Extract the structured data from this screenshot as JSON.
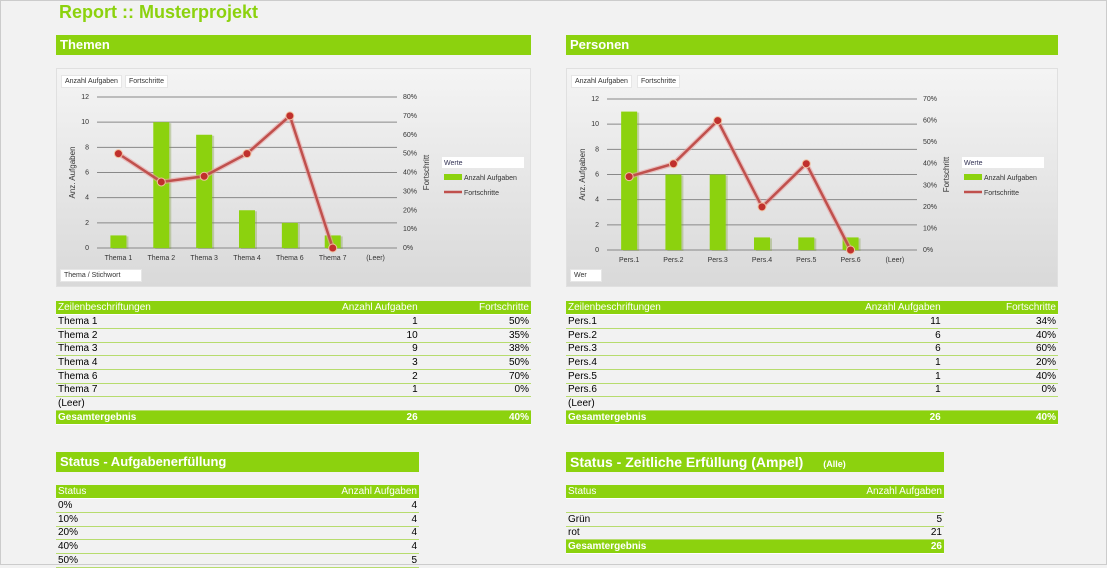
{
  "title": "Report :: Musterprojekt",
  "colors": {
    "accent": "#8cd20e",
    "bar": "#8cd20e",
    "line": "#c0504d"
  },
  "themen": {
    "heading": "Themen",
    "tag_fields": "Anzahl Aufgaben",
    "tag_fields2": "Fortschritte",
    "axis_field": "Thema / Stichwort",
    "table": {
      "headers": [
        "Zeilenbeschriftungen",
        "Anzahl Aufgaben",
        "Fortschritte"
      ],
      "rows": [
        [
          "Thema 1",
          "1",
          "50%"
        ],
        [
          "Thema 2",
          "10",
          "35%"
        ],
        [
          "Thema 3",
          "9",
          "38%"
        ],
        [
          "Thema 4",
          "3",
          "50%"
        ],
        [
          "Thema 6",
          "2",
          "70%"
        ],
        [
          "Thema 7",
          "1",
          "0%"
        ],
        [
          "(Leer)",
          "",
          ""
        ]
      ],
      "total": [
        "Gesamtergebnis",
        "26",
        "40%"
      ]
    }
  },
  "personen": {
    "heading": "Personen",
    "tag_fields": "Anzahl Aufgaben",
    "tag_fields2": "Fortschritte",
    "axis_field": "Wer",
    "table": {
      "headers": [
        "Zeilenbeschriftungen",
        "Anzahl Aufgaben",
        "Fortschritte"
      ],
      "rows": [
        [
          "Pers.1",
          "11",
          "34%"
        ],
        [
          "Pers.2",
          "6",
          "40%"
        ],
        [
          "Pers.3",
          "6",
          "60%"
        ],
        [
          "Pers.4",
          "1",
          "20%"
        ],
        [
          "Pers.5",
          "1",
          "40%"
        ],
        [
          "Pers.6",
          "1",
          "0%"
        ],
        [
          "(Leer)",
          "",
          ""
        ]
      ],
      "total": [
        "Gesamtergebnis",
        "26",
        "40%"
      ]
    }
  },
  "chart_data": [
    {
      "type": "bar+line",
      "categories": [
        "Thema 1",
        "Thema 2",
        "Thema 3",
        "Thema 4",
        "Thema 6",
        "Thema 7",
        "(Leer)"
      ],
      "series": [
        {
          "name": "Anzahl Aufgaben",
          "type": "bar",
          "axis": "left",
          "values": [
            1,
            10,
            9,
            3,
            2,
            1,
            null
          ]
        },
        {
          "name": "Fortschritte",
          "type": "line",
          "axis": "right",
          "values": [
            50,
            35,
            38,
            50,
            70,
            0,
            null
          ]
        }
      ],
      "ylabel": "Anz. Aufgaben",
      "y2label": "Fortschritt",
      "ylim": [
        0,
        12
      ],
      "yticks": [
        0,
        2,
        4,
        6,
        8,
        10,
        12
      ],
      "y2lim": [
        0,
        80
      ],
      "y2ticks": [
        0,
        10,
        20,
        30,
        40,
        50,
        60,
        70,
        80
      ],
      "legend_title": "Werte",
      "legend": "right",
      "grid": true
    },
    {
      "type": "bar+line",
      "categories": [
        "Pers.1",
        "Pers.2",
        "Pers.3",
        "Pers.4",
        "Pers.5",
        "Pers.6",
        "(Leer)"
      ],
      "series": [
        {
          "name": "Anzahl Aufgaben",
          "type": "bar",
          "axis": "left",
          "values": [
            11,
            6,
            6,
            1,
            1,
            1,
            null
          ]
        },
        {
          "name": "Fortschritte",
          "type": "line",
          "axis": "right",
          "values": [
            34,
            40,
            60,
            20,
            40,
            0,
            null
          ]
        }
      ],
      "ylabel": "Anz. Aufgaben",
      "y2label": "Fortschritt",
      "ylim": [
        0,
        12
      ],
      "yticks": [
        0,
        2,
        4,
        6,
        8,
        10,
        12
      ],
      "y2lim": [
        0,
        70
      ],
      "y2ticks": [
        0,
        10,
        20,
        30,
        40,
        50,
        60,
        70
      ],
      "legend_title": "Werte",
      "legend": "right",
      "grid": true
    }
  ],
  "status1": {
    "heading": "Status - Aufgabenerfüllung",
    "headers": [
      "Status",
      "Anzahl Aufgaben"
    ],
    "rows": [
      [
        "0%",
        "4"
      ],
      [
        "10%",
        "4"
      ],
      [
        "20%",
        "4"
      ],
      [
        "40%",
        "4"
      ],
      [
        "50%",
        "5"
      ]
    ]
  },
  "status2": {
    "heading": "Status - Zeitliche Erfüllung (Ampel)",
    "filter": "(Alle)",
    "headers": [
      "Status",
      "Anzahl Aufgaben"
    ],
    "rows": [
      [
        "",
        ""
      ],
      [
        "Grün",
        "5"
      ],
      [
        "rot",
        "21"
      ]
    ],
    "total": [
      "Gesamtergebnis",
      "26"
    ]
  }
}
